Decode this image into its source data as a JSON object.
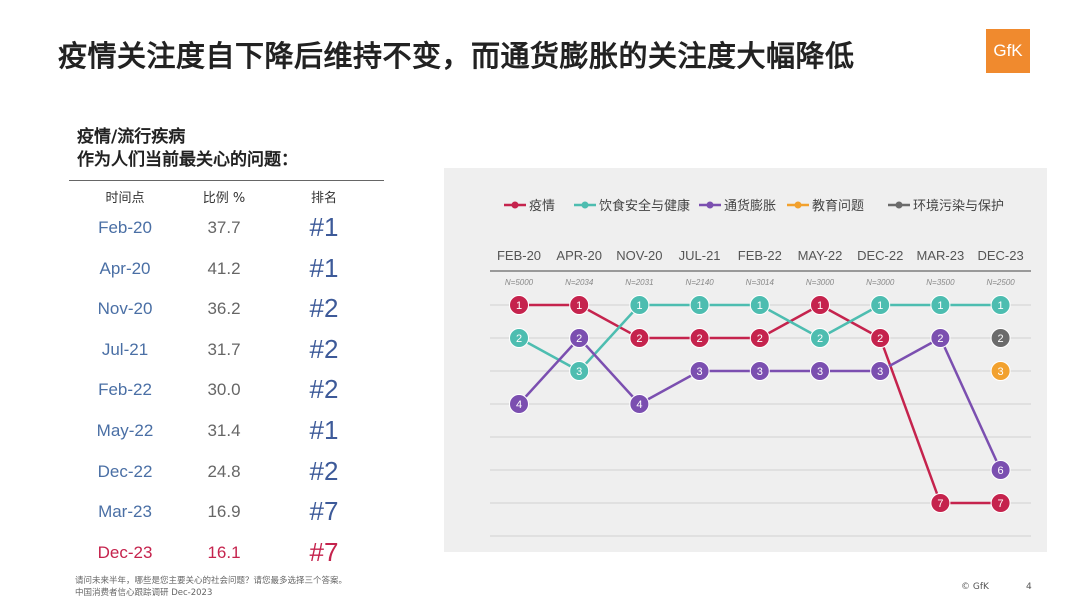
{
  "title": "疫情关注度自下降后维持不变，而通货膨胀的关注度大幅降低",
  "logo_text": "GfK",
  "table": {
    "heading_line1": "疫情/流行疾病",
    "heading_line2": "作为人们当前最关心的问题：",
    "headers": [
      "时间点",
      "比例 %",
      "排名"
    ],
    "rows": [
      {
        "date": "Feb-20",
        "value": "37.7",
        "rank": "#1"
      },
      {
        "date": "Apr-20",
        "value": "41.2",
        "rank": "#1"
      },
      {
        "date": "Nov-20",
        "value": "36.2",
        "rank": "#2"
      },
      {
        "date": "Jul-21",
        "value": "31.7",
        "rank": "#2"
      },
      {
        "date": "Feb-22",
        "value": "30.0",
        "rank": "#2"
      },
      {
        "date": "May-22",
        "value": "31.4",
        "rank": "#1"
      },
      {
        "date": "Dec-22",
        "value": "24.8",
        "rank": "#2"
      },
      {
        "date": "Mar-23",
        "value": "16.9",
        "rank": "#7"
      },
      {
        "date": "Dec-23",
        "value": "16.1",
        "rank": "#7"
      }
    ],
    "highlight_color": "#c5234d"
  },
  "footnote_line1": "请问未来半年，哪些是您主要关心的社会问题？请您最多选择三个答案。",
  "footnote_line2": "中国消费者信心跟踪调研 Dec-2023",
  "copyright": "© GfK",
  "page_number": "4",
  "chart_data": {
    "type": "line",
    "categories": [
      "FEB-20",
      "APR-20",
      "NOV-20",
      "JUL-21",
      "FEB-22",
      "MAY-22",
      "DEC-22",
      "MAR-23",
      "DEC-23"
    ],
    "sample_sizes": [
      "N=5000",
      "N=2034",
      "N=2031",
      "N=2140",
      "N=3014",
      "N=3000",
      "N=3000",
      "N=3500",
      "N=2500"
    ],
    "y_scale": "rank",
    "y_range": [
      1,
      7
    ],
    "y_inverted": true,
    "grid": true,
    "legend_position": "top",
    "series": [
      {
        "name": "疫情",
        "color": "#c5234d",
        "values": [
          1,
          1,
          2,
          2,
          2,
          1,
          2,
          7,
          7
        ]
      },
      {
        "name": "饮食安全与健康",
        "color": "#4dbdb0",
        "values": [
          2,
          3,
          1,
          1,
          1,
          2,
          1,
          1,
          1
        ]
      },
      {
        "name": "通货膨胀",
        "color": "#7b4fb0",
        "values": [
          4,
          2,
          4,
          3,
          3,
          3,
          3,
          2,
          6
        ]
      },
      {
        "name": "教育问题",
        "color": "#f2a12e",
        "values": [
          null,
          null,
          null,
          null,
          null,
          null,
          null,
          null,
          3
        ]
      },
      {
        "name": "环境污染与保护",
        "color": "#6b6b6b",
        "values": [
          null,
          null,
          null,
          null,
          null,
          null,
          null,
          null,
          2
        ]
      }
    ]
  }
}
